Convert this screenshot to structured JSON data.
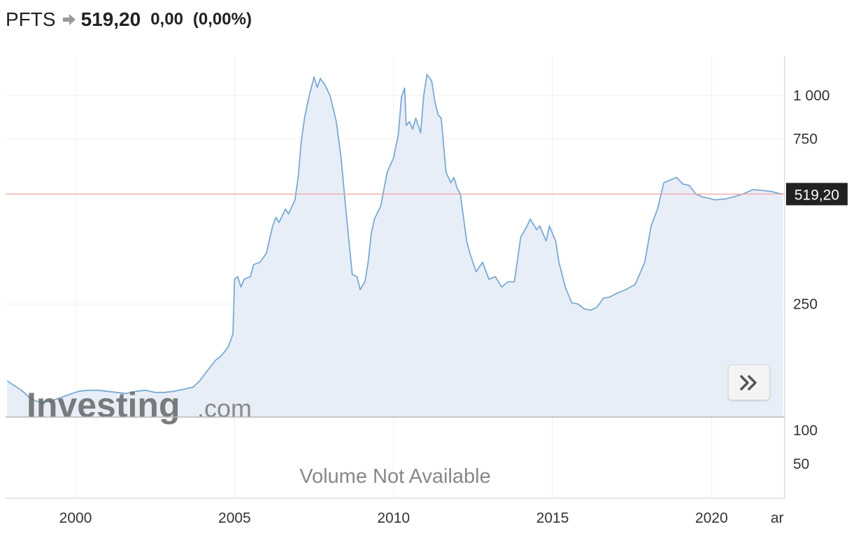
{
  "header": {
    "symbol": "PFTS",
    "arrow_icon": "right-arrow-icon",
    "price": "519,20",
    "change": "0,00",
    "change_pct": "(0,00%)"
  },
  "watermark": {
    "brand": "Investing",
    "suffix": ".com"
  },
  "volume_note": "Volume Not Available",
  "scroll_button_icon": "double-chevron-right-icon",
  "colors": {
    "line": "#7aaad2",
    "area": "#e8eef7",
    "last_price_line": "#f2a0a0",
    "last_price_badge": "#222222",
    "grid": "#f0f0f0"
  },
  "chart_data": {
    "type": "area",
    "y_scale": "log",
    "title": "",
    "xlabel": "",
    "ylabel": "",
    "x_range": [
      1997.8,
      2022.3
    ],
    "ylim": [
      118,
      1300
    ],
    "x_ticks": [
      {
        "value": 2000,
        "label": "2000"
      },
      {
        "value": 2005,
        "label": "2005"
      },
      {
        "value": 2010,
        "label": "2010"
      },
      {
        "value": 2015,
        "label": "2015"
      },
      {
        "value": 2020,
        "label": "2020"
      }
    ],
    "x_tick_partial": "ar",
    "y_ticks": [
      {
        "value": 250,
        "label": "250"
      },
      {
        "value": 750,
        "label": "750"
      },
      {
        "value": 1000,
        "label": "1 000"
      }
    ],
    "last_value": 519.2,
    "last_value_label": "519,20",
    "volume_ticks": [
      "100",
      "50"
    ],
    "series": [
      {
        "x": [
          1997.85,
          1998.0,
          1998.3,
          1998.6,
          1998.9,
          1999.2,
          1999.5,
          1999.8,
          2000.1,
          2000.4,
          2000.7,
          2001.0,
          2001.3,
          2001.6,
          2001.9,
          2002.2,
          2002.5,
          2002.8,
          2003.1,
          2003.4,
          2003.7,
          2003.9,
          2004.2,
          2004.4,
          2004.6,
          2004.8,
          2004.95,
          2005.0,
          2005.1,
          2005.2,
          2005.3,
          2005.5,
          2005.6,
          2005.8,
          2006.0,
          2006.2,
          2006.3,
          2006.4,
          2006.6,
          2006.7,
          2006.9,
          2007.0,
          2007.1,
          2007.2,
          2007.35,
          2007.5,
          2007.6,
          2007.7,
          2007.85,
          2008.0,
          2008.1,
          2008.2,
          2008.35,
          2008.5,
          2008.7,
          2008.85,
          2008.95,
          2009.1,
          2009.2,
          2009.3,
          2009.4,
          2009.6,
          2009.8,
          2010.0,
          2010.15,
          2010.25,
          2010.35,
          2010.4,
          2010.5,
          2010.6,
          2010.7,
          2010.85,
          2010.95,
          2011.05,
          2011.2,
          2011.3,
          2011.4,
          2011.5,
          2011.65,
          2011.8,
          2011.9,
          2012.0,
          2012.1,
          2012.3,
          2012.4,
          2012.6,
          2012.8,
          2013.0,
          2013.2,
          2013.4,
          2013.6,
          2013.8,
          2014.0,
          2014.2,
          2014.3,
          2014.5,
          2014.6,
          2014.8,
          2014.9,
          2015.1,
          2015.2,
          2015.4,
          2015.6,
          2015.8,
          2016.0,
          2016.2,
          2016.4,
          2016.6,
          2016.8,
          2017.0,
          2017.3,
          2017.6,
          2017.9,
          2018.1,
          2018.3,
          2018.5,
          2018.7,
          2018.9,
          2019.1,
          2019.3,
          2019.5,
          2019.7,
          2019.9,
          2020.1,
          2020.4,
          2020.7,
          2021.0,
          2021.3,
          2021.6,
          2021.9,
          2022.1,
          2022.25
        ],
        "values": [
          150,
          147,
          141,
          133,
          130,
          131,
          134,
          137,
          140,
          141,
          141,
          140,
          139,
          138,
          140,
          141,
          139,
          139,
          140,
          142,
          144,
          150,
          163,
          172,
          178,
          188,
          205,
          295,
          300,
          280,
          295,
          300,
          325,
          330,
          350,
          420,
          445,
          430,
          470,
          455,
          500,
          580,
          740,
          860,
          1000,
          1130,
          1055,
          1120,
          1070,
          1000,
          920,
          840,
          660,
          470,
          305,
          300,
          275,
          290,
          330,
          400,
          440,
          480,
          600,
          660,
          770,
          990,
          1050,
          820,
          840,
          800,
          860,
          780,
          1000,
          1150,
          1100,
          960,
          880,
          860,
          600,
          560,
          580,
          540,
          520,
          380,
          350,
          310,
          330,
          295,
          300,
          280,
          290,
          290,
          390,
          420,
          440,
          410,
          420,
          380,
          420,
          380,
          330,
          280,
          252,
          250,
          242,
          240,
          245,
          260,
          262,
          268,
          275,
          285,
          330,
          420,
          470,
          560,
          570,
          580,
          555,
          550,
          520,
          510,
          505,
          500,
          502,
          510,
          520,
          535,
          532,
          528,
          522,
          519.2
        ]
      }
    ]
  }
}
